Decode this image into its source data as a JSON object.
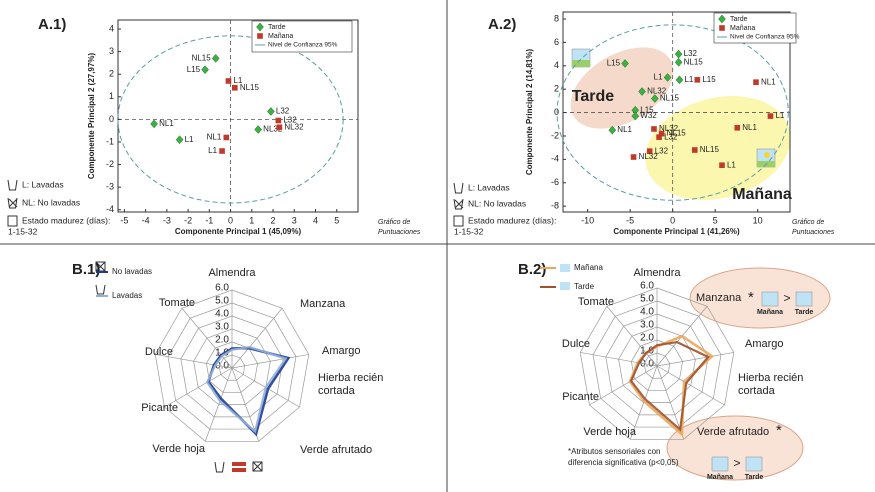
{
  "chart_data": [
    {
      "type": "scatter",
      "panel_label": "A.1)",
      "x_label": "Componente Principal 1 (45,09%)",
      "y_label": "Componente Principal 2 (27,97%)",
      "note": [
        "Gráfico de",
        "Puntuaciones"
      ],
      "legend_notes": [
        "L: Lavadas",
        "NL: No lavadas",
        "Estado madurez (días):",
        "1-15-32"
      ],
      "xlim": [
        -5.3,
        6
      ],
      "ylim": [
        -4.1,
        4.4
      ],
      "xticks": [
        -5,
        -4,
        -3,
        -2,
        -1,
        0,
        1,
        2,
        3,
        4,
        5
      ],
      "yticks": [
        -4,
        -3,
        -2,
        -1,
        0,
        1,
        2,
        3,
        4
      ],
      "ellipse": {
        "name": "Nivel de Confianza 95%",
        "rx": 5.3,
        "ry": 3.7,
        "color": "#5a9ea0"
      },
      "series": [
        {
          "name": "Tarde",
          "color": "#3cb043",
          "marker": "diamond",
          "x": [
            -0.7,
            -1.2,
            -3.6,
            -2.4,
            1.9,
            1.3
          ],
          "values": [
            2.7,
            2.2,
            -0.2,
            -0.9,
            0.35,
            -0.45
          ],
          "point_labels": [
            "NL15",
            "L15",
            "NL1",
            "L1",
            "L32",
            "NL32"
          ]
        },
        {
          "name": "Mañana",
          "color": "#c0392b",
          "marker": "square",
          "x": [
            -0.1,
            0.2,
            -0.2,
            -0.4,
            2.25,
            2.3
          ],
          "values": [
            1.7,
            1.4,
            -0.8,
            -1.4,
            -0.05,
            -0.35
          ],
          "point_labels": [
            "L1",
            "NL15",
            "NL1",
            "L1",
            "L32",
            "NL32"
          ]
        }
      ]
    },
    {
      "type": "scatter",
      "panel_label": "A.2)",
      "x_label": "Componente Principal 1 (41,26%)",
      "y_label": "Componente Principal 2 (14,81%)",
      "note": [
        "Gráfico de",
        "Puntuaciones"
      ],
      "legend_notes": [
        "L: Lavadas",
        "NL: No lavadas",
        "Estado madurez (días):",
        "1-15-32"
      ],
      "region_labels": [
        "Tarde",
        "Mañana"
      ],
      "xlim": [
        -12.9,
        13.8
      ],
      "ylim": [
        -8.5,
        8.6
      ],
      "xticks": [
        -10,
        -5,
        0,
        5,
        10
      ],
      "yticks": [
        -8,
        -6,
        -4,
        -2,
        0,
        2,
        4,
        6,
        8
      ],
      "ellipse": {
        "name": "Nivel de Confianza 95%",
        "rx": 13.6,
        "ry": 7.5,
        "color": "#5a9ea0"
      },
      "series": [
        {
          "name": "Tarde",
          "color": "#3cb043",
          "marker": "diamond",
          "x": [
            0.7,
            0.7,
            -5.6,
            -0.6,
            0.8,
            -3.6,
            -2.1,
            -4.4,
            -4.4,
            -7.1
          ],
          "values": [
            5.0,
            4.3,
            4.2,
            3.0,
            2.8,
            1.8,
            1.2,
            0.2,
            -0.3,
            -1.5
          ],
          "point_labels": [
            "L32",
            "NL15",
            "L15",
            "L1",
            "L1",
            "NL32",
            "NL15",
            "L15",
            "W32",
            "NL1"
          ]
        },
        {
          "name": "Mañana",
          "color": "#c0392b",
          "marker": "square",
          "x": [
            2.9,
            9.8,
            11.5,
            7.6,
            -2.2,
            -1.3,
            -1.6,
            -2.7,
            -4.6,
            2.6,
            5.8
          ],
          "values": [
            2.8,
            2.6,
            -0.3,
            -1.3,
            -1.4,
            -1.8,
            -2.1,
            -3.3,
            -3.8,
            -3.2,
            -4.5
          ],
          "point_labels": [
            "L15",
            "NL1",
            "L1",
            "NL1",
            "NL32",
            "NL15",
            "L32",
            "L32",
            "NL32",
            "NL15",
            "L1"
          ]
        }
      ]
    },
    {
      "type": "radar",
      "panel_label": "B.1)",
      "categories": [
        "Almendra",
        "Manzana",
        "Amargo",
        "Hierba recién cortada",
        "Verde afrutado",
        "Verde hoja",
        "Picante",
        "Dulce",
        "Tomate"
      ],
      "rlim": [
        0,
        6
      ],
      "rticks": [
        {
          "value": 0,
          "label": "0.0"
        },
        {
          "value": 1,
          "label": "1.0"
        },
        {
          "value": 2,
          "label": "2.0"
        },
        {
          "value": 3,
          "label": "3.0"
        },
        {
          "value": 4,
          "label": "4.0"
        },
        {
          "value": 5,
          "label": "5.0"
        },
        {
          "value": 6,
          "label": "6.0"
        }
      ],
      "series": [
        {
          "name": "No lavadas",
          "color": "#1f3a93",
          "values": [
            1.5,
            2.0,
            4.4,
            3.2,
            5.4,
            2.5,
            2.1,
            1.4,
            1.3
          ]
        },
        {
          "name": "Lavadas",
          "color": "#8fb0d8",
          "values": [
            1.4,
            2.1,
            4.2,
            3.0,
            5.2,
            2.7,
            2.2,
            1.3,
            1.2
          ]
        }
      ]
    },
    {
      "type": "radar",
      "panel_label": "B.2)",
      "categories": [
        "Almendra",
        "Manzana",
        "Amargo",
        "Hierba recién cortada",
        "Verde afrutado",
        "Verde hoja",
        "Picante",
        "Dulce",
        "Tomate"
      ],
      "rlim": [
        0,
        6
      ],
      "rticks": [
        {
          "value": 0,
          "label": "0.0"
        },
        {
          "value": 1,
          "label": "1.0"
        },
        {
          "value": 2,
          "label": "2.0"
        },
        {
          "value": 3,
          "label": "3.0"
        },
        {
          "value": 4,
          "label": "4.0"
        },
        {
          "value": 5,
          "label": "5.0"
        },
        {
          "value": 6,
          "label": "6.0"
        }
      ],
      "callouts": [
        {
          "mark": "*",
          "left": "Mañana",
          "relation": ">",
          "right": "Tarde"
        },
        {
          "mark": "*",
          "left": "Mañana",
          "relation": ">",
          "right": "Tarde"
        }
      ],
      "footnote": [
        "*Atributos sensoriales con",
        "diferencia significativa (p<0,05)"
      ],
      "series": [
        {
          "name": "Mañana",
          "color": "#e8a860",
          "values": [
            1.5,
            3.0,
            4.3,
            2.4,
            5.6,
            2.9,
            2.4,
            1.5,
            1.3
          ]
        },
        {
          "name": "Tarde",
          "color": "#a0522d",
          "values": [
            1.6,
            2.4,
            4.0,
            2.6,
            5.2,
            2.7,
            2.3,
            1.4,
            1.3
          ]
        }
      ]
    }
  ]
}
